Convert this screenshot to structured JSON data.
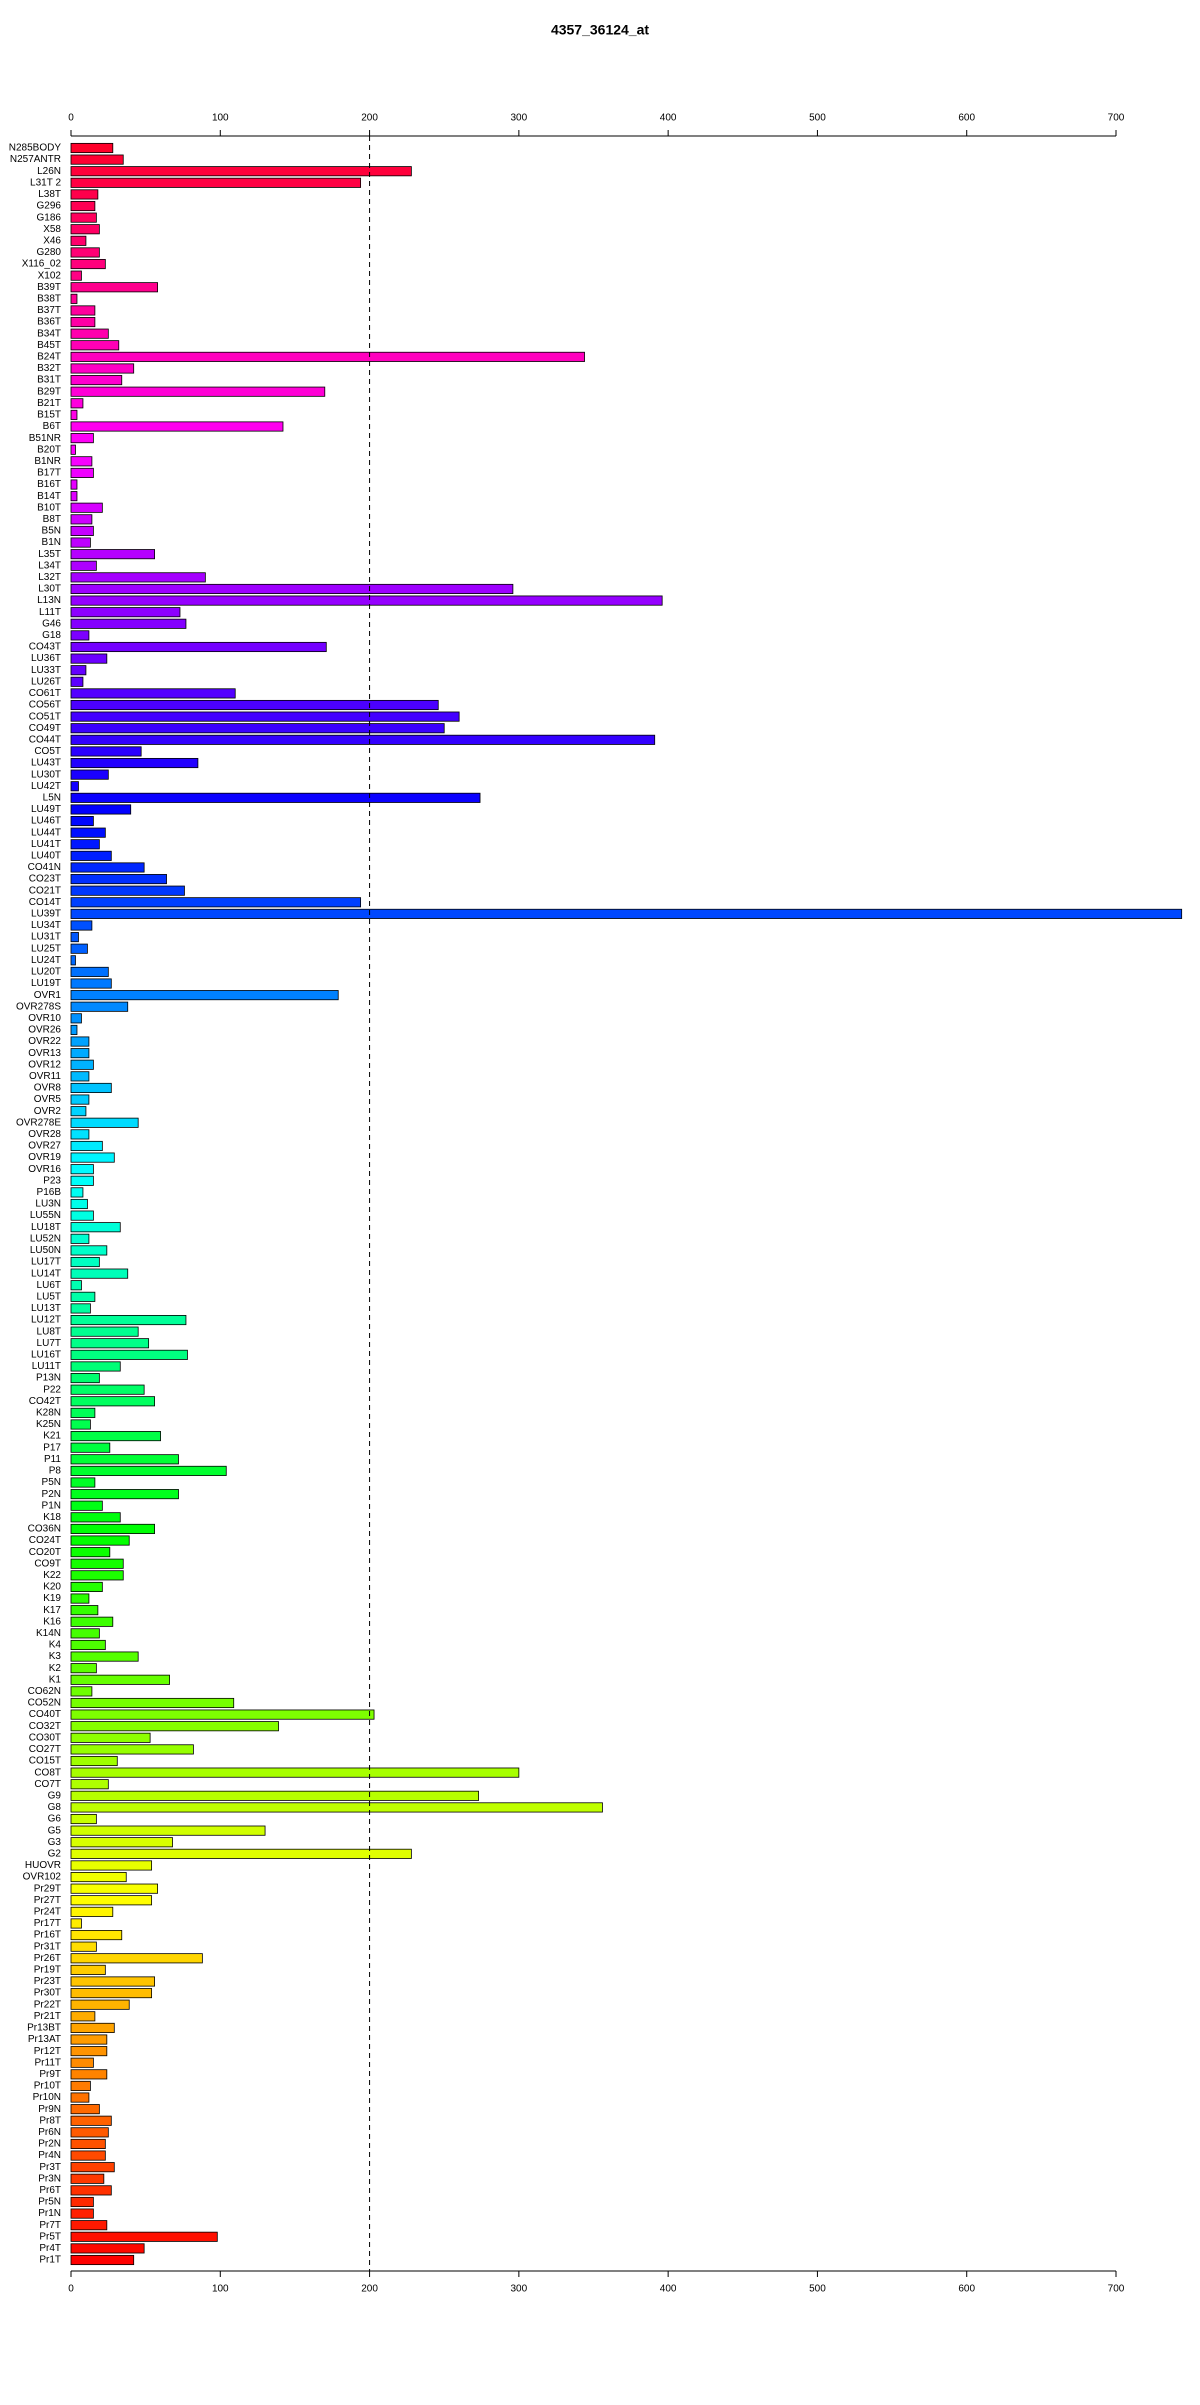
{
  "chart_data": {
    "type": "barh",
    "title": "4357_36124_at",
    "categories": [
      "N285BODY",
      "N257ANTR",
      "L26N",
      "L31T 2",
      "L38T",
      "G296",
      "G186",
      "X58",
      "X46",
      "G280",
      "X116_02",
      "X102",
      "B39T",
      "B38T",
      "B37T",
      "B36T",
      "B34T",
      "B45T",
      "B24T",
      "B32T",
      "B31T",
      "B29T",
      "B21T",
      "B15T",
      "B6T",
      "B51NR",
      "B20T",
      "B1NR",
      "B17T",
      "B16T",
      "B14T",
      "B10T",
      "B8T",
      "B5N",
      "B1N",
      "L35T",
      "L34T",
      "L32T",
      "L30T",
      "L13N",
      "L11T",
      "G46",
      "G18",
      "CO43T",
      "LU36T",
      "LU33T",
      "LU26T",
      "CO61T",
      "CO56T",
      "CO51T",
      "CO49T",
      "CO44T",
      "CO5T",
      "LU43T",
      "LU30T",
      "LU42T",
      "L5N",
      "LU49T",
      "LU46T",
      "LU44T",
      "LU41T",
      "LU40T",
      "CO41N",
      "CO23T",
      "CO21T",
      "CO14T",
      "LU39T",
      "LU34T",
      "LU31T",
      "LU25T",
      "LU24T",
      "LU20T",
      "LU19T",
      "OVR1",
      "OVR278S",
      "OVR10",
      "OVR26",
      "OVR22",
      "OVR13",
      "OVR12",
      "OVR11",
      "OVR8",
      "OVR5",
      "OVR2",
      "OVR278E",
      "OVR28",
      "OVR27",
      "OVR19",
      "OVR16",
      "P23",
      "P16B",
      "LU3N",
      "LU55N",
      "LU18T",
      "LU52N",
      "LU50N",
      "LU17T",
      "LU14T",
      "LU6T",
      "LU5T",
      "LU13T",
      "LU12T",
      "LU8T",
      "LU7T",
      "LU16T",
      "LU11T",
      "P13N",
      "P22",
      "CO42T",
      "K28N",
      "K25N",
      "K21",
      "P17",
      "P11",
      "P8",
      "P5N",
      "P2N",
      "P1N",
      "K18",
      "CO36N",
      "CO24T",
      "CO20T",
      "CO9T",
      "K22",
      "K20",
      "K19",
      "K17",
      "K16",
      "K14N",
      "K4",
      "K3",
      "K2",
      "K1",
      "CO62N",
      "CO52N",
      "CO40T",
      "CO32T",
      "CO30T",
      "CO27T",
      "CO15T",
      "CO8T",
      "CO7T",
      "G9",
      "G8",
      "G6",
      "G5",
      "G3",
      "G2",
      "HUOVR",
      "OVR102",
      "Pr29T",
      "Pr27T",
      "Pr24T",
      "Pr17T",
      "Pr16T",
      "Pr31T",
      "Pr26T",
      "Pr19T",
      "Pr23T",
      "Pr30T",
      "Pr22T",
      "Pr21T",
      "Pr13BT",
      "Pr13AT",
      "Pr12T",
      "Pr11T",
      "Pr9T",
      "Pr10T",
      "Pr10N",
      "Pr9N",
      "Pr8T",
      "Pr6N",
      "Pr2N",
      "Pr4N",
      "Pr3T",
      "Pr3N",
      "Pr6T",
      "Pr5N",
      "Pr1N",
      "Pr7T",
      "Pr5T",
      "Pr4T",
      "Pr1T"
    ],
    "values": [
      28,
      35,
      228,
      194,
      18,
      16,
      17,
      19,
      10,
      19,
      23,
      7,
      58,
      4,
      16,
      16,
      25,
      32,
      344,
      42,
      34,
      170,
      8,
      4,
      142,
      15,
      3,
      14,
      15,
      4,
      4,
      21,
      14,
      15,
      13,
      56,
      17,
      90,
      296,
      396,
      73,
      77,
      12,
      171,
      24,
      10,
      8,
      110,
      246,
      260,
      250,
      391,
      47,
      85,
      25,
      5,
      274,
      40,
      15,
      23,
      19,
      27,
      49,
      64,
      76,
      194,
      744,
      14,
      5,
      11,
      3,
      25,
      27,
      179,
      38,
      7,
      4,
      12,
      12,
      15,
      12,
      27,
      12,
      10,
      45,
      12,
      21,
      29,
      15,
      15,
      8,
      11,
      15,
      33,
      12,
      24,
      19,
      38,
      7,
      16,
      13,
      77,
      45,
      52,
      78,
      33,
      19,
      49,
      56,
      16,
      13,
      60,
      26,
      72,
      104,
      16,
      72,
      21,
      33,
      56,
      39,
      26,
      35,
      35,
      21,
      12,
      18,
      28,
      19,
      23,
      45,
      17,
      66,
      14,
      109,
      203,
      139,
      53,
      82,
      31,
      300,
      25,
      273,
      356,
      17,
      130,
      68,
      228,
      54,
      37,
      58,
      54,
      28,
      7,
      34,
      17,
      88,
      23,
      56,
      54,
      39,
      16,
      29,
      24,
      24,
      15,
      24,
      13,
      12,
      19,
      27,
      25,
      23,
      23,
      29,
      22,
      27,
      15,
      15,
      24,
      98,
      49,
      42
    ],
    "color_scale": "rainbow",
    "xlim": [
      0,
      700
    ],
    "xticks": [
      0,
      100,
      200,
      300,
      400,
      500,
      600,
      700
    ],
    "vlines": [
      200
    ]
  }
}
